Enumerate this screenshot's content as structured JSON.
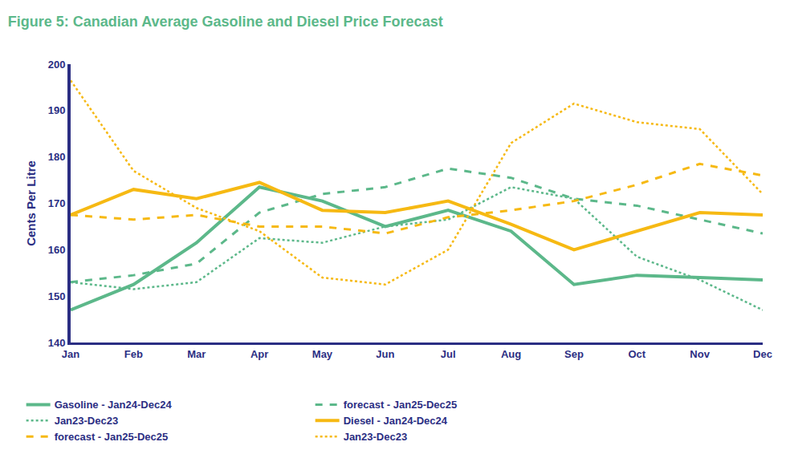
{
  "chart_data": {
    "type": "line",
    "title": "Figure 5: Canadian Average Gasoline and Diesel Price Forecast",
    "y_label": "Cents Per Litre",
    "categories": [
      "Jan",
      "Feb",
      "Mar",
      "Apr",
      "May",
      "Jun",
      "Jul",
      "Aug",
      "Sep",
      "Oct",
      "Nov",
      "Dec"
    ],
    "ylim": [
      140,
      200
    ],
    "yticks": [
      140,
      150,
      160,
      170,
      180,
      190,
      200
    ],
    "grid": false,
    "legend": "bottom",
    "series": [
      {
        "name": "Gasoline - Jan24-Dec24",
        "color": "#5cb88a",
        "line_style": "solid",
        "values": [
          147,
          152.5,
          161.5,
          173.5,
          170.5,
          165,
          168.5,
          164,
          152.5,
          154.5,
          154,
          153.5
        ]
      },
      {
        "name": "forecast - Jan25-Dec25",
        "color": "#5cb88a",
        "line_style": "dash",
        "values": [
          153,
          154.5,
          157,
          168,
          172,
          173.5,
          177.5,
          175.5,
          171,
          169.5,
          166.5,
          163.5
        ]
      },
      {
        "name": "Jan23-Dec23",
        "color": "#5cb88a",
        "line_style": "dot",
        "values": [
          153,
          151.5,
          153,
          162.5,
          161.5,
          165,
          166.5,
          173.5,
          171,
          158.5,
          153.5,
          147
        ]
      },
      {
        "name": "Diesel - Jan24-Dec24",
        "color": "#f6b913",
        "line_style": "solid",
        "values": [
          167.5,
          173,
          171,
          174.5,
          168.5,
          168,
          170.5,
          165.5,
          160,
          164,
          168,
          167.5
        ]
      },
      {
        "name": "forecast - Jan25-Dec25",
        "color": "#f6b913",
        "line_style": "dash",
        "values": [
          167.5,
          166.5,
          167.5,
          165,
          165,
          163.5,
          167,
          168.5,
          170.5,
          174,
          178.5,
          176
        ]
      },
      {
        "name": "Jan23-Dec23",
        "color": "#f6b913",
        "line_style": "dot",
        "values": [
          196.5,
          177,
          169,
          164,
          154,
          152.5,
          160,
          183,
          191.5,
          187.5,
          186,
          172
        ]
      }
    ]
  }
}
